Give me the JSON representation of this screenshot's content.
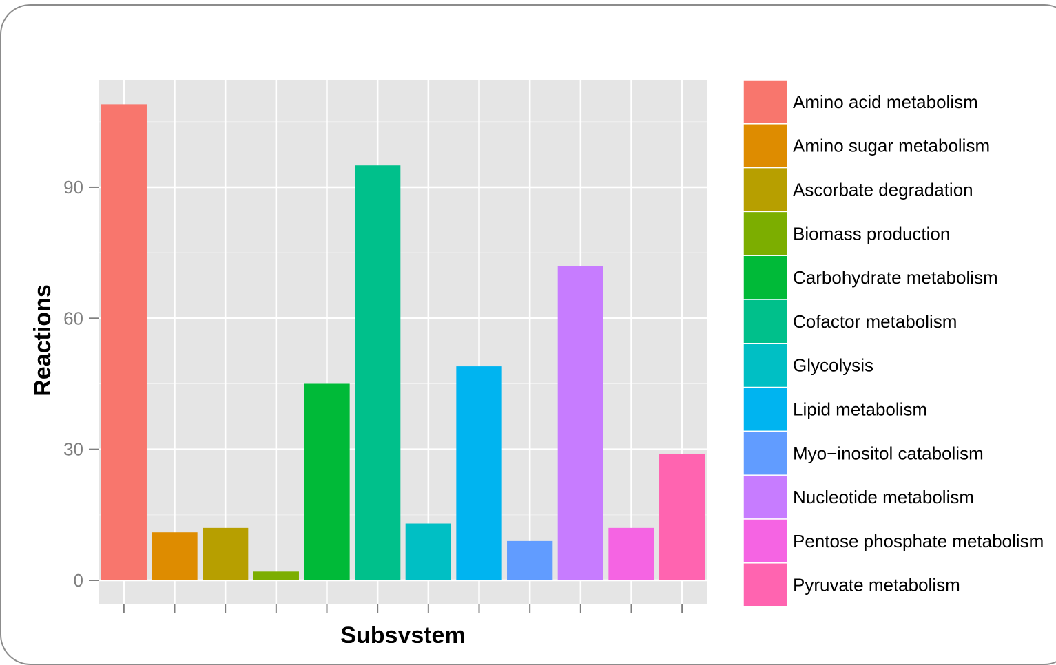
{
  "chart_data": {
    "type": "bar",
    "xlabel": "Subsystem",
    "ylabel": "Reactions",
    "ylim": [
      0,
      114
    ],
    "yticks": [
      0,
      30,
      60,
      90
    ],
    "grid": true,
    "legend_position": "right",
    "categories": [
      "Amino acid metabolism",
      "Amino sugar metabolism",
      "Ascorbate degradation",
      "Biomass production",
      "Carbohydrate metabolism",
      "Cofactor metabolism",
      "Glycolysis",
      "Lipid metabolism",
      "Myo−inositol catabolism",
      "Nucleotide metabolism",
      "Pentose phosphate metabolism",
      "Pyruvate metabolism"
    ],
    "values": [
      109,
      11,
      12,
      2,
      45,
      95,
      13,
      49,
      9,
      72,
      12,
      29
    ],
    "colors": [
      "#F8766D",
      "#DE8C00",
      "#B79F00",
      "#7CAE00",
      "#00BA38",
      "#00C08B",
      "#00BFC4",
      "#00B4F0",
      "#619CFF",
      "#C77CFF",
      "#F564E3",
      "#FF64B0"
    ]
  }
}
